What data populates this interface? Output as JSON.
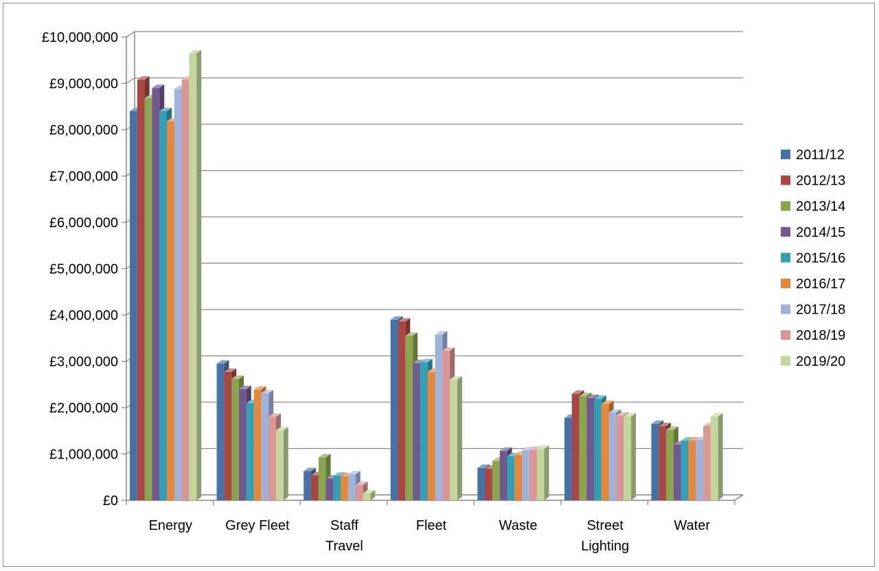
{
  "chart_data": {
    "type": "bar",
    "title": "",
    "xlabel": "",
    "ylabel": "",
    "ylim": [
      0,
      10000000
    ],
    "ytick_step": 1000000,
    "yticks": [
      "£0",
      "£1,000,000",
      "£2,000,000",
      "£3,000,000",
      "£4,000,000",
      "£5,000,000",
      "£6,000,000",
      "£7,000,000",
      "£8,000,000",
      "£9,000,000",
      "£10,000,000"
    ],
    "grid": true,
    "legend_position": "right",
    "categories": [
      [
        "Energy"
      ],
      [
        "Grey Fleet"
      ],
      [
        "Staff",
        "Travel"
      ],
      [
        "Fleet"
      ],
      [
        "Waste"
      ],
      [
        "Street",
        "Lighting"
      ],
      [
        "Water"
      ]
    ],
    "series": [
      {
        "name": "2011/12",
        "color": "#4572a7",
        "values": [
          8400000,
          2950000,
          630000,
          3900000,
          700000,
          1780000,
          1650000
        ]
      },
      {
        "name": "2012/13",
        "color": "#aa4643",
        "values": [
          9080000,
          2770000,
          540000,
          3860000,
          680000,
          2300000,
          1600000
        ]
      },
      {
        "name": "2013/14",
        "color": "#89a54e",
        "values": [
          8680000,
          2620000,
          930000,
          3550000,
          850000,
          2250000,
          1520000
        ]
      },
      {
        "name": "2014/15",
        "color": "#71588f",
        "values": [
          8900000,
          2400000,
          470000,
          2960000,
          1070000,
          2210000,
          1200000
        ]
      },
      {
        "name": "2015/16",
        "color": "#31a0b5",
        "values": [
          8400000,
          2100000,
          530000,
          2980000,
          950000,
          2190000,
          1290000
        ]
      },
      {
        "name": "2016/17",
        "color": "#e6873a",
        "values": [
          8180000,
          2390000,
          520000,
          2770000,
          980000,
          2080000,
          1290000
        ]
      },
      {
        "name": "2017/18",
        "color": "#9fb3da",
        "values": [
          8880000,
          2310000,
          560000,
          3580000,
          1080000,
          1890000,
          1300000
        ]
      },
      {
        "name": "2018/19",
        "color": "#db9594",
        "values": [
          9080000,
          1800000,
          330000,
          3230000,
          1090000,
          1830000,
          1600000
        ]
      },
      {
        "name": "2019/20",
        "color": "#c3d69b",
        "values": [
          9650000,
          1510000,
          150000,
          2610000,
          1110000,
          1810000,
          1810000
        ]
      }
    ]
  }
}
